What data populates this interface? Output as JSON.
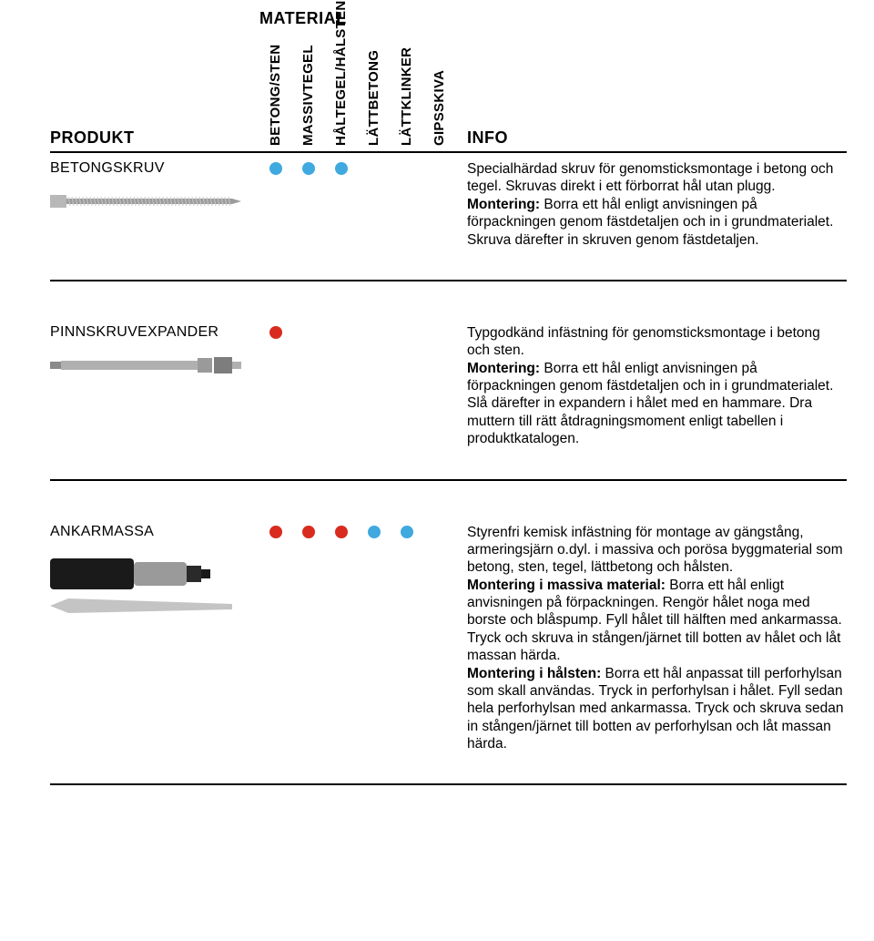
{
  "page": {
    "material_header": "MATERIAL",
    "product_header": "PRODUKT",
    "info_header": "INFO"
  },
  "materials": [
    {
      "key": "betong_sten",
      "label": "BETONG/STEN"
    },
    {
      "key": "massivtegel",
      "label": "MASSIVTEGEL"
    },
    {
      "key": "haltegel_halsten",
      "label": "HÅLTEGEL/HÅLSTEN"
    },
    {
      "key": "lattbetong",
      "label": "LÄTTBETONG"
    },
    {
      "key": "lattklinker",
      "label": "LÄTTKLINKER"
    },
    {
      "key": "gipsskiva",
      "label": "GIPSSKIVA"
    }
  ],
  "colors": {
    "blue": "#3fa9e0",
    "red": "#d92b1f",
    "text": "#000000",
    "rule": "#000000",
    "bg": "#ffffff"
  },
  "products": [
    {
      "name": "BETONGSKRUV",
      "dots": [
        "blue",
        "blue",
        "blue",
        null,
        null,
        null
      ],
      "info_html": "Specialhärdad skruv för genomsticksmontage i betong och tegel. Skruvas direkt i ett förborrat hål utan plugg.<br><b>Montering:</b> Borra ett hål enligt anvisningen på förpackningen genom fästdetaljen och in i grundmaterialet. Skruva därefter in skruven genom fästdetaljen.",
      "image_svg": "<svg width='210' height='26' viewBox='0 0 210 26'><rect x='0' y='6' width='18' height='14' fill='#b8b8b8'/><rect x='18' y='10' width='182' height='6' fill='#9c9c9c'/><g stroke='#c8c8c8' stroke-width='1'>REPEAT_THREADS</g><polygon points='200,10 210,13 200,16' fill='#9c9c9c'/></svg>"
    },
    {
      "name": "PINNSKRUVEXPANDER",
      "dots": [
        "red",
        null,
        null,
        null,
        null,
        null
      ],
      "info_html": "Typgodkänd infästning för genomsticksmontage i betong och sten.<br><b>Montering:</b> Borra ett hål enligt anvisningen på förpackningen genom fästdetaljen och in i grund­materialet. Slå därefter in expandern i hålet med en hammare. Dra muttern till rätt åtdragnings­moment enligt tabellen i produktkatalogen.",
      "image_svg": "<svg width='210' height='26' viewBox='0 0 210 26'><rect x='0' y='9' width='12' height='8' fill='#8a8a8a'/><rect x='12' y='8' width='150' height='10' fill='#b0b0b0'/><rect x='162' y='5' width='16' height='16' fill='#9a9a9a'/><rect x='180' y='4' width='20' height='18' fill='#7d7d7d'/><rect x='200' y='9' width='10' height='8' fill='#b0b0b0'/></svg>"
    },
    {
      "name": "ANKARMASSA",
      "dots": [
        "red",
        "red",
        "red",
        "blue",
        "blue",
        null
      ],
      "info_html": "Styrenfri kemisk infästning för montage av gäng­stång, armeringsjärn o.dyl. i massiva och porösa byggmaterial som betong, sten, tegel, lättbetong och hålsten.<br><b>Montering i massiva material:</b> Borra ett hål enligt anvisningen på förpackningen. Rengör hålet noga med borste och blåspump. Fyll hålet till hälften med ankarmassa. Tryck och skruva in stången/jär­net till botten av hålet och låt massan härda.<br><b>Montering i hålsten:</b> Borra ett hål anpassat till per­forhylsan som skall användas. Tryck in perforhylsan i hålet. Fyll sedan hela perforhylsan med ankarmassa. Tryck och skruva sedan in stången/järnet till botten av perforhylsan och låt massan härda.",
      "image_svg": "<svg width='210' height='70' viewBox='0 0 210 70'><rect x='0' y='6' width='92' height='34' rx='4' fill='#1a1a1a'/><rect x='92' y='10' width='58' height='26' rx='4' fill='#9a9a9a'/><rect x='150' y='14' width='16' height='18' fill='#2a2a2a'/><rect x='166' y='18' width='10' height='10' fill='#1a1a1a'/><polygon points='0,58 20,50 200,56 200,62 20,66' fill='#c4c4c4'/></svg>"
    }
  ]
}
